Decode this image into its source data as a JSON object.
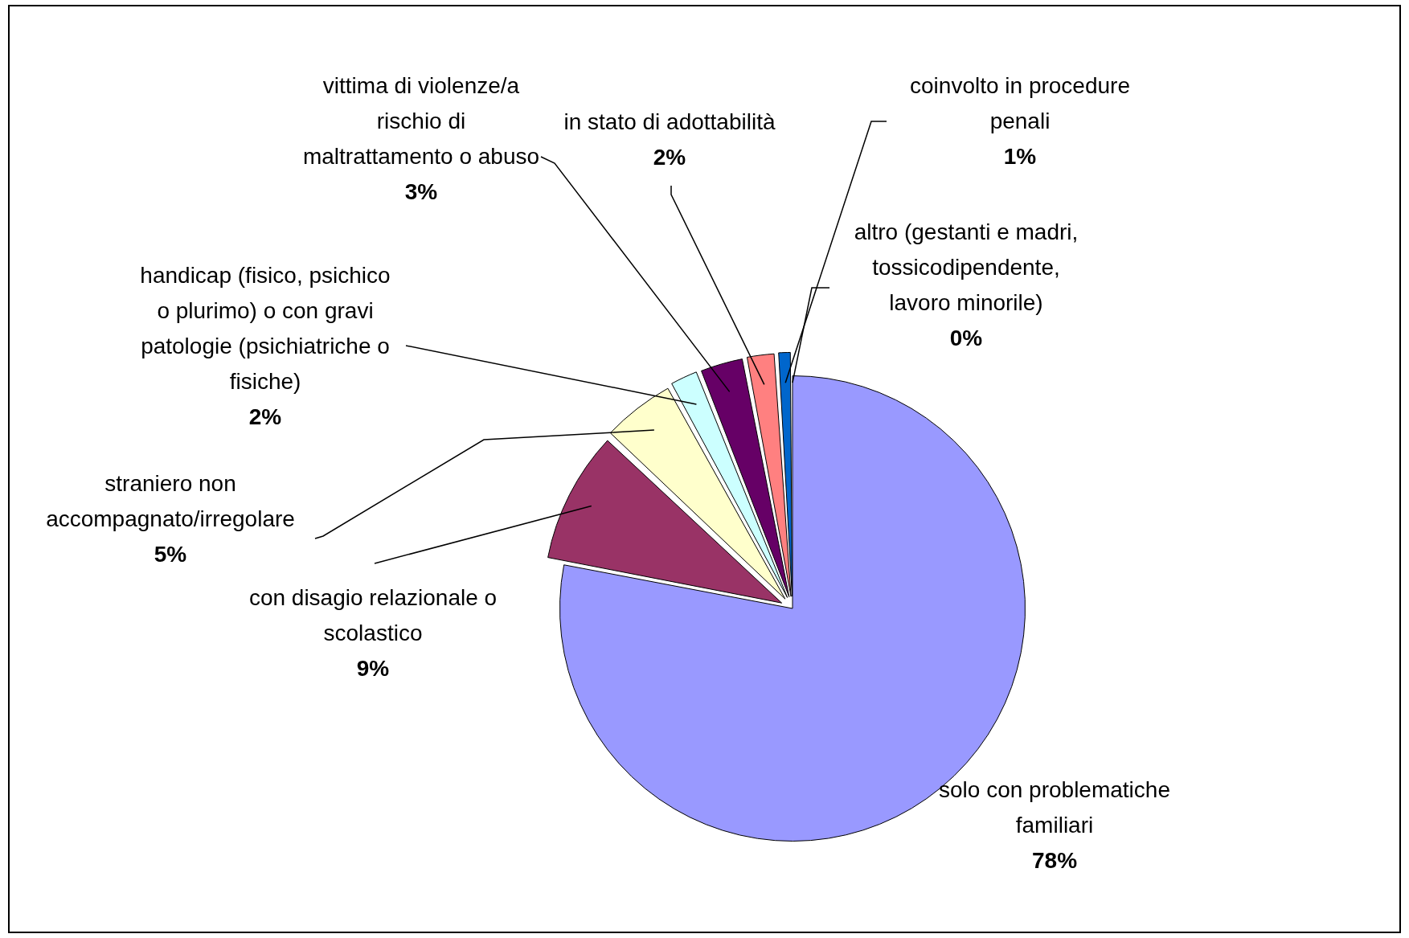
{
  "chart_data": {
    "type": "pie",
    "categories": [
      "solo con problematiche familiari",
      "con disagio relazionale o scolastico",
      "straniero non accompagnato/irregolare",
      "handicap (fisico, psichico o plurimo) o con gravi patologie (psichiatriche o fisiche)",
      "vittima di violenze/a rischio di maltrattamento o abuso",
      "in stato di adottabilità",
      "coinvolto in procedure penali",
      "altro (gestanti e madri, tossicodipendente, lavoro minorile)"
    ],
    "values": [
      78,
      9,
      5,
      2,
      3,
      2,
      1,
      0
    ],
    "value_labels": [
      "78%",
      "9%",
      "5%",
      "2%",
      "3%",
      "2%",
      "1%",
      "0%"
    ],
    "colors": [
      "#9999ff",
      "#993366",
      "#ffffcc",
      "#ccffff",
      "#660066",
      "#ff8080",
      "#0066cc",
      "#000000"
    ],
    "legend": false
  }
}
